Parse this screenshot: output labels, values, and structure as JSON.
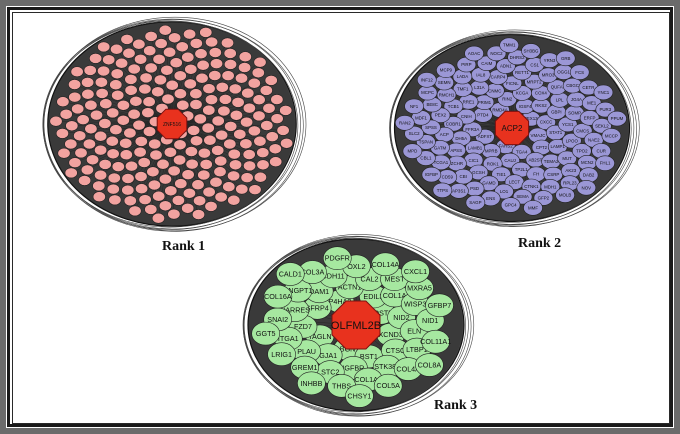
{
  "labels": {
    "rank1": "Rank 1",
    "rank2": "Rank 2",
    "rank3": "Rank 3"
  },
  "colors": {
    "hub": "#e8321e",
    "rank1_node": "#f2a3a0",
    "rank2_node": "#9b97d6",
    "rank3_node": "#a6e8a0",
    "edge_fill": "#3a3a3a"
  },
  "networks": {
    "rank1": {
      "hub": "ZNF516",
      "node_count": 220,
      "nodes": []
    },
    "rank2": {
      "hub": "ACP2",
      "nodes": [
        "PEX13",
        "FARS2",
        "RMD4A",
        "VMAJC",
        "ADFXT",
        "IGSF4",
        "TGA4",
        "PTD4",
        "CXCC",
        "MPRB",
        "RIN2",
        "CPT2",
        "FFR3A",
        "RKS2",
        "CAUJ",
        "PRIM1",
        "STAT1",
        "LAMB1",
        "KCGA",
        "AB2ST",
        "CNIH",
        "GBPI",
        "ROK1",
        "CNMC",
        "LAMP1",
        "DH5A",
        "COX4",
        "TP2L1",
        "RRE1",
        "YCS1",
        "CIC1",
        "FICNL",
        "TEMA2",
        "COBR1",
        "LPL",
        "TIE1",
        "L31A",
        "LPOO",
        "APSS",
        "MRPT2",
        "FH",
        "TCB1",
        "SOMP",
        "GCSH",
        "CARP4",
        "MUT",
        "ACP",
        "QUFA",
        "LECT",
        "TMF1",
        "CMCS",
        "ZCHR",
        "RETT1",
        "CSRP",
        "PEX2",
        "JG4A",
        "GAMD",
        "IAL8",
        "TPO2",
        "GATM",
        "MRO3",
        "CTNK1",
        "RMCH1",
        "ERFP",
        "CBI",
        "ADN1",
        "AK23",
        "SPSS",
        "CBGC",
        "LO1",
        "LADA",
        "NAE2",
        "TCGA1",
        "CS1",
        "MDH1",
        "BE8C",
        "ME1",
        "PSD",
        "CAIM",
        "MCN2",
        "TSPAN",
        "OGG1",
        "SEMA",
        "SEMN",
        "SEKL2",
        "CD59",
        "DHRS2",
        "RPL23",
        "MDF1",
        "CETR",
        "ENS",
        "PIRP",
        "CUR",
        "CBL1",
        "YRN3",
        "GFP2",
        "MCPC",
        "PUR3",
        "AP3S1",
        "NOC2",
        "DAB2",
        "SLC2",
        "FCS",
        "GPC4",
        "MCP9",
        "MCCP",
        "IGFBP",
        "SH3BG",
        "MOLB",
        "NF1",
        "YNC1",
        "SAGP",
        "AOAC",
        "FHL1",
        "MPD",
        "GRB",
        "MMF",
        "INF12",
        "PPUM",
        "TTPS",
        "TMM1",
        "NOV",
        "RAN2"
      ]
    },
    "rank3": {
      "hub": "OLFML2B",
      "nodes": [
        "POSTN",
        "BGN",
        "P4HA2",
        "XCND3",
        "TAGLN",
        "EDIL3",
        "BST1",
        "SFRP4",
        "NID2",
        "GJA1",
        "ACTN1",
        "CTSC",
        "FZD7",
        "COL1A",
        "IGFBR",
        "DAM1",
        "ELN",
        "PLAU",
        "CAL2",
        "STK38L",
        "NARRES",
        "WISP3",
        "STC2",
        "CDH11",
        "LTBP1",
        "ITGA1",
        "MEST",
        "COL1A2",
        "ANGPT1",
        "NID1",
        "GREM1",
        "OXL2",
        "COL4A",
        "SNAI2",
        "MXRA5",
        "THBS",
        "COL3A",
        "COL11A1",
        "LRIG1",
        "COL14A",
        "COL5A",
        "COL16A",
        "GFBP7",
        "INHBB",
        "PDGFR",
        "COL8A",
        "GGT5",
        "CXCL1",
        "CHSY1",
        "CALD1"
      ]
    }
  }
}
